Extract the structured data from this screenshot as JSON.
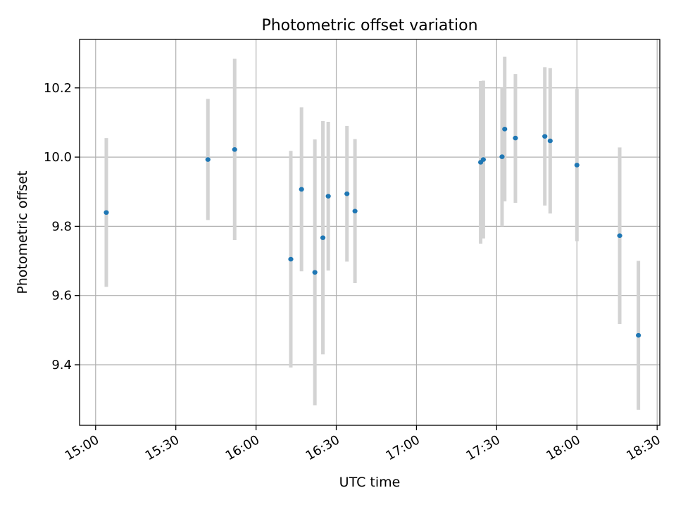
{
  "chart_data": {
    "type": "scatter",
    "title": "Photometric offset variation",
    "xlabel": "UTC time",
    "ylabel": "Photometric offset",
    "x_ticks": [
      "15:00",
      "15:30",
      "16:00",
      "16:30",
      "17:00",
      "17:30",
      "18:00",
      "18:30"
    ],
    "y_ticks": [
      9.4,
      9.6,
      9.8,
      10.0,
      10.2
    ],
    "y_tick_labels": [
      "9.4",
      "9.6",
      "9.8",
      "10.0",
      "10.2"
    ],
    "xlim": [
      "14:54",
      "18:31"
    ],
    "ylim": [
      9.225,
      10.34
    ],
    "grid": true,
    "colors": {
      "point": "#1f77b4",
      "errorbar": "#d3d3d3"
    },
    "points": [
      {
        "x": "15:04",
        "y": 9.84,
        "ylow": 9.625,
        "yhigh": 10.055
      },
      {
        "x": "15:42",
        "y": 9.993,
        "ylow": 9.818,
        "yhigh": 10.168
      },
      {
        "x": "15:52",
        "y": 10.022,
        "ylow": 9.76,
        "yhigh": 10.284
      },
      {
        "x": "16:13",
        "y": 9.705,
        "ylow": 9.392,
        "yhigh": 10.018
      },
      {
        "x": "16:17",
        "y": 9.907,
        "ylow": 9.67,
        "yhigh": 10.144
      },
      {
        "x": "16:22",
        "y": 9.667,
        "ylow": 9.283,
        "yhigh": 10.051
      },
      {
        "x": "16:25",
        "y": 9.767,
        "ylow": 9.43,
        "yhigh": 10.104
      },
      {
        "x": "16:27",
        "y": 9.887,
        "ylow": 9.672,
        "yhigh": 10.102
      },
      {
        "x": "16:34",
        "y": 9.894,
        "ylow": 9.698,
        "yhigh": 10.09
      },
      {
        "x": "16:37",
        "y": 9.844,
        "ylow": 9.636,
        "yhigh": 10.052
      },
      {
        "x": "17:24",
        "y": 9.985,
        "ylow": 9.75,
        "yhigh": 10.22
      },
      {
        "x": "17:25",
        "y": 9.993,
        "ylow": 9.765,
        "yhigh": 10.221
      },
      {
        "x": "17:32",
        "y": 10.001,
        "ylow": 9.8,
        "yhigh": 10.2
      },
      {
        "x": "17:33",
        "y": 10.081,
        "ylow": 9.872,
        "yhigh": 10.29
      },
      {
        "x": "17:37",
        "y": 10.055,
        "ylow": 9.868,
        "yhigh": 10.24
      },
      {
        "x": "17:48",
        "y": 10.06,
        "ylow": 9.86,
        "yhigh": 10.26
      },
      {
        "x": "17:50",
        "y": 10.047,
        "ylow": 9.837,
        "yhigh": 10.257
      },
      {
        "x": "18:00",
        "y": 9.977,
        "ylow": 9.757,
        "yhigh": 10.197
      },
      {
        "x": "18:16",
        "y": 9.773,
        "ylow": 9.518,
        "yhigh": 10.028
      },
      {
        "x": "18:23",
        "y": 9.485,
        "ylow": 9.27,
        "yhigh": 9.7
      }
    ]
  }
}
